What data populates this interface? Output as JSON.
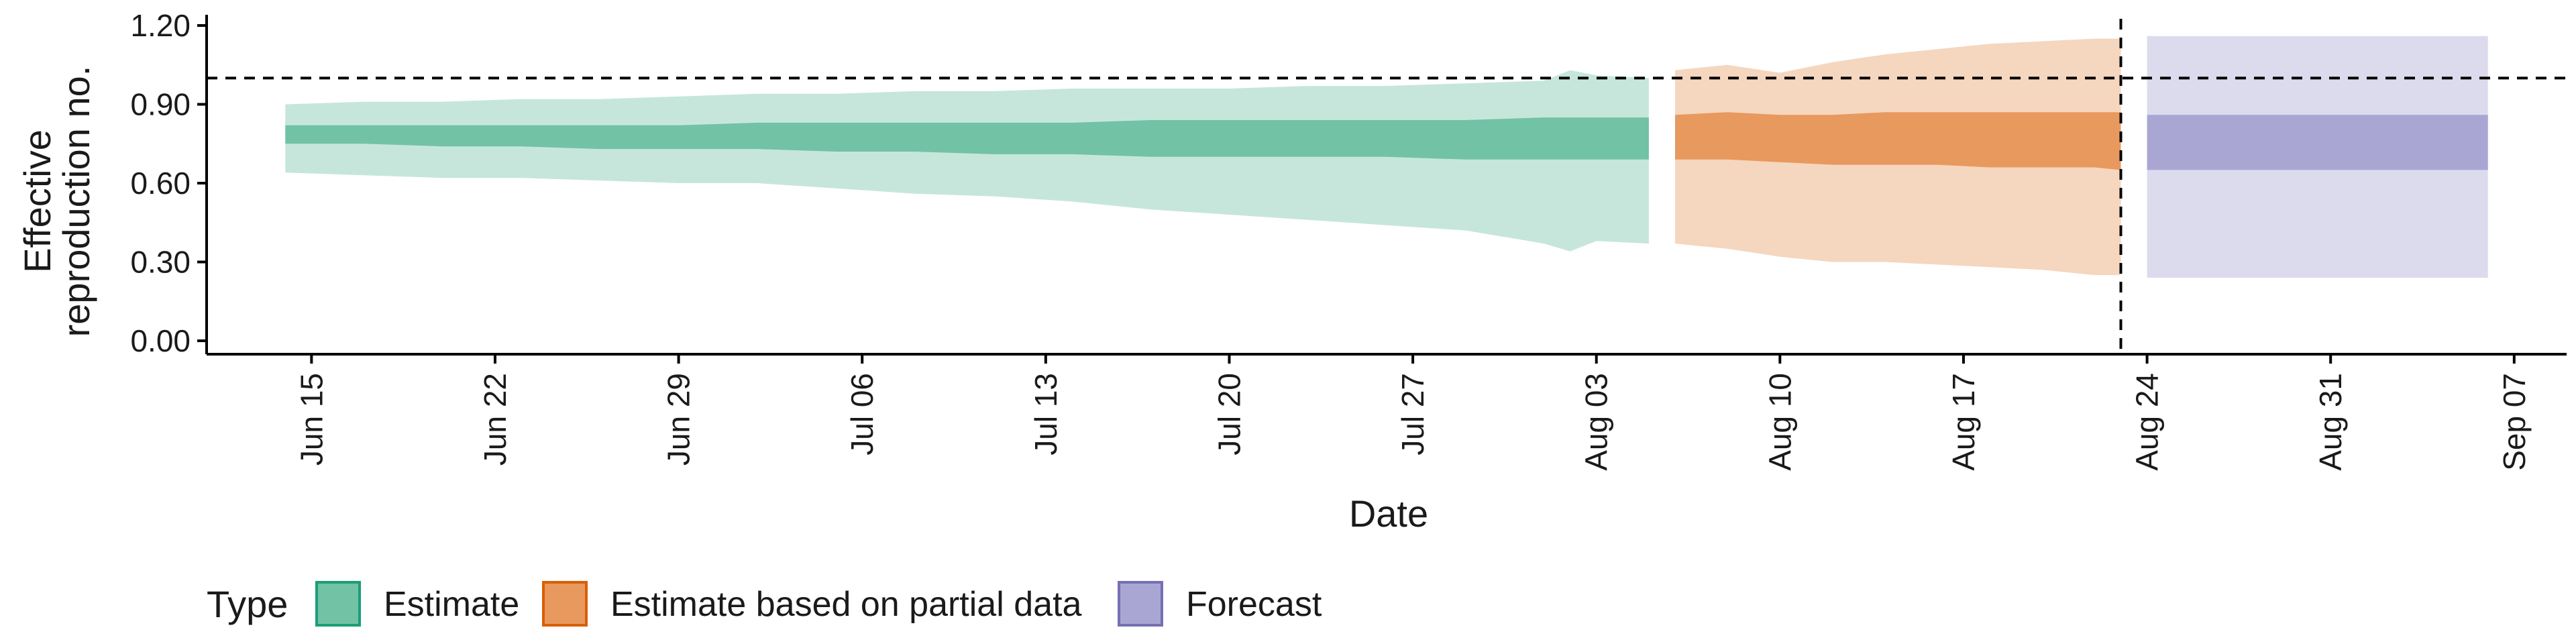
{
  "chart_data": {
    "type": "area",
    "xlabel": "Date",
    "ylabel_lines": [
      "Effective",
      "reproduction no."
    ],
    "ylim": [
      0,
      1.2
    ],
    "yticks": [
      "0.00",
      "0.30",
      "0.60",
      "0.90",
      "1.20"
    ],
    "xlim": [
      "2020-06-11",
      "2020-09-09"
    ],
    "xticks": [
      {
        "date": "2020-06-15",
        "label": "Jun 15"
      },
      {
        "date": "2020-06-22",
        "label": "Jun 22"
      },
      {
        "date": "2020-06-29",
        "label": "Jun 29"
      },
      {
        "date": "2020-07-06",
        "label": "Jul 06"
      },
      {
        "date": "2020-07-13",
        "label": "Jul 13"
      },
      {
        "date": "2020-07-20",
        "label": "Jul 20"
      },
      {
        "date": "2020-07-27",
        "label": "Jul 27"
      },
      {
        "date": "2020-08-03",
        "label": "Aug 03"
      },
      {
        "date": "2020-08-10",
        "label": "Aug 10"
      },
      {
        "date": "2020-08-17",
        "label": "Aug 17"
      },
      {
        "date": "2020-08-24",
        "label": "Aug 24"
      },
      {
        "date": "2020-08-31",
        "label": "Aug 31"
      },
      {
        "date": "2020-09-07",
        "label": "Sep 07"
      }
    ],
    "reference_line_y": 1.0,
    "vertical_line_date": "2020-08-23",
    "grid": false,
    "legend": {
      "title": "Type",
      "position": "bottom",
      "items": [
        {
          "label": "Estimate",
          "fill": "#72c2a6",
          "border": "#1b9e77"
        },
        {
          "label": "Estimate based on partial data",
          "fill": "#e8995e",
          "border": "#d95f02"
        },
        {
          "label": "Forecast",
          "fill": "#a9a6d3",
          "border": "#7570b3"
        }
      ]
    },
    "series": [
      {
        "name": "Estimate",
        "inner_color": "#72c2a6",
        "outer_color": "#c6e6dc",
        "dates": [
          "2020-06-14",
          "2020-06-17",
          "2020-06-20",
          "2020-06-23",
          "2020-06-26",
          "2020-06-29",
          "2020-07-02",
          "2020-07-05",
          "2020-07-08",
          "2020-07-11",
          "2020-07-14",
          "2020-07-17",
          "2020-07-20",
          "2020-07-23",
          "2020-07-26",
          "2020-07-29",
          "2020-08-01",
          "2020-08-02",
          "2020-08-03",
          "2020-08-05"
        ],
        "outer_low": [
          0.64,
          0.63,
          0.62,
          0.62,
          0.61,
          0.6,
          0.6,
          0.58,
          0.56,
          0.55,
          0.53,
          0.5,
          0.48,
          0.46,
          0.44,
          0.42,
          0.37,
          0.34,
          0.38,
          0.37
        ],
        "inner_low": [
          0.75,
          0.75,
          0.74,
          0.74,
          0.73,
          0.73,
          0.73,
          0.72,
          0.72,
          0.71,
          0.71,
          0.7,
          0.7,
          0.7,
          0.7,
          0.69,
          0.69,
          0.69,
          0.69,
          0.69
        ],
        "inner_high": [
          0.82,
          0.82,
          0.82,
          0.82,
          0.82,
          0.82,
          0.83,
          0.83,
          0.83,
          0.83,
          0.83,
          0.84,
          0.84,
          0.84,
          0.84,
          0.84,
          0.85,
          0.85,
          0.85,
          0.85
        ],
        "outer_high": [
          0.9,
          0.91,
          0.91,
          0.92,
          0.92,
          0.93,
          0.94,
          0.94,
          0.95,
          0.95,
          0.96,
          0.96,
          0.96,
          0.97,
          0.97,
          0.98,
          0.99,
          1.03,
          1.01,
          1.0
        ]
      },
      {
        "name": "Estimate based on partial data",
        "inner_color": "#e8995e",
        "outer_color": "#f5d6bf",
        "dates": [
          "2020-08-06",
          "2020-08-08",
          "2020-08-10",
          "2020-08-12",
          "2020-08-14",
          "2020-08-16",
          "2020-08-18",
          "2020-08-20",
          "2020-08-22",
          "2020-08-23"
        ],
        "outer_low": [
          0.37,
          0.35,
          0.32,
          0.3,
          0.3,
          0.29,
          0.28,
          0.27,
          0.25,
          0.25
        ],
        "inner_low": [
          0.69,
          0.69,
          0.68,
          0.67,
          0.67,
          0.67,
          0.66,
          0.66,
          0.66,
          0.65
        ],
        "inner_high": [
          0.86,
          0.87,
          0.86,
          0.86,
          0.87,
          0.87,
          0.87,
          0.87,
          0.87,
          0.87
        ],
        "outer_high": [
          1.03,
          1.05,
          1.02,
          1.06,
          1.09,
          1.11,
          1.13,
          1.14,
          1.15,
          1.15
        ]
      },
      {
        "name": "Forecast",
        "inner_color": "#a9a6d3",
        "outer_color": "#dcdbed",
        "dates": [
          "2020-08-24",
          "2020-09-06"
        ],
        "outer_low": [
          0.24,
          0.24
        ],
        "inner_low": [
          0.65,
          0.65
        ],
        "inner_high": [
          0.86,
          0.86
        ],
        "outer_high": [
          1.16,
          1.16
        ]
      }
    ]
  }
}
